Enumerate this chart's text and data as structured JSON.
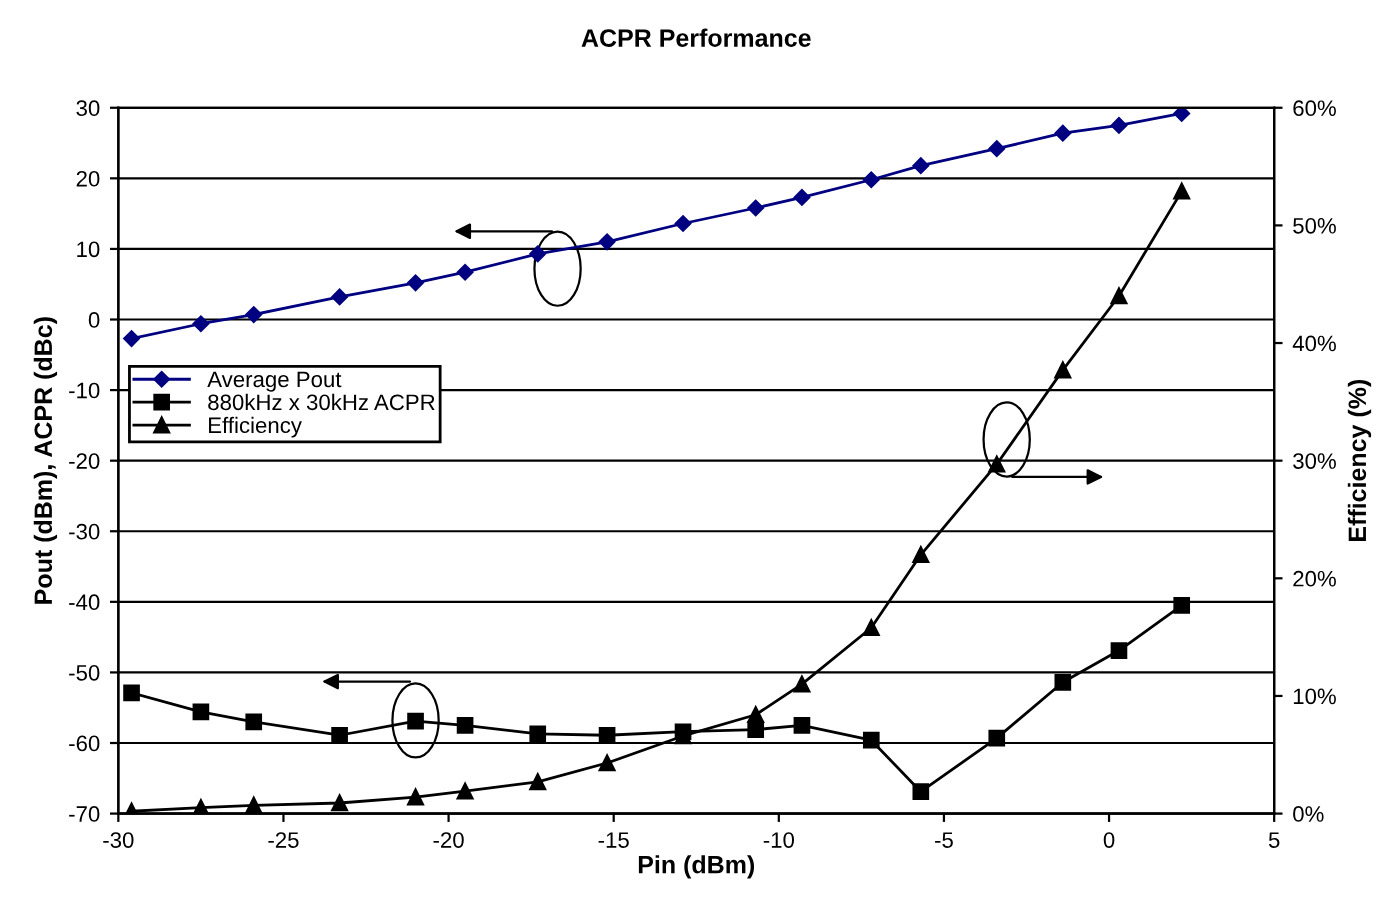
{
  "chart_data": {
    "type": "line",
    "title": "ACPR Performance",
    "xlabel": "Pin (dBm)",
    "ylabel": "Pout (dBm), ACPR (dBc)",
    "y2label": "Efficiency (%)",
    "x": [
      -29.6,
      -27.5,
      -25.9,
      -23.3,
      -21.0,
      -19.5,
      -17.3,
      -15.2,
      -12.9,
      -10.7,
      -9.3,
      -7.2,
      -5.7,
      -3.4,
      -1.4,
      0.3,
      2.2
    ],
    "series": [
      {
        "name": "Average Pout",
        "color": "#000080",
        "marker": "diamond",
        "values": [
          -2.7,
          -0.6,
          0.7,
          3.2,
          5.2,
          6.7,
          9.3,
          11.0,
          13.6,
          15.8,
          17.3,
          19.8,
          21.8,
          24.2,
          26.4,
          27.5,
          29.2
        ]
      },
      {
        "name": "880kHz x 30kHz ACPR",
        "color": "#000000",
        "marker": "square",
        "values": [
          -52.9,
          -55.6,
          -57.0,
          -58.9,
          -56.9,
          -57.5,
          -58.7,
          -58.9,
          -58.4,
          -58.1,
          -57.5,
          -59.6,
          -66.9,
          -59.3,
          -51.4,
          -46.9,
          -40.5
        ]
      },
      {
        "name": "Efficiency",
        "color": "#000000",
        "marker": "triangle",
        "axis": "y2",
        "values": [
          0.2,
          0.5,
          0.7,
          0.9,
          1.4,
          1.9,
          2.7,
          4.3,
          6.6,
          8.4,
          11.0,
          15.8,
          22.0,
          29.7,
          37.7,
          44.0,
          52.9
        ]
      }
    ],
    "xlim": [
      -30,
      5
    ],
    "xticks": [
      -30,
      -25,
      -20,
      -15,
      -10,
      -5,
      0,
      5
    ],
    "ylim": [
      -70,
      30
    ],
    "yticks": [
      -70,
      -60,
      -50,
      -40,
      -30,
      -20,
      -10,
      0,
      10,
      20,
      30
    ],
    "y2lim": [
      0,
      60
    ],
    "y2ticks": [
      {
        "value": 0,
        "label": "0%"
      },
      {
        "value": 10,
        "label": "10%"
      },
      {
        "value": 20,
        "label": "20%"
      },
      {
        "value": 30,
        "label": "30%"
      },
      {
        "value": 40,
        "label": "40%"
      },
      {
        "value": 50,
        "label": "50%"
      },
      {
        "value": 60,
        "label": "60%"
      }
    ],
    "grid": "y",
    "legend": "center left",
    "line_style": "solid"
  }
}
